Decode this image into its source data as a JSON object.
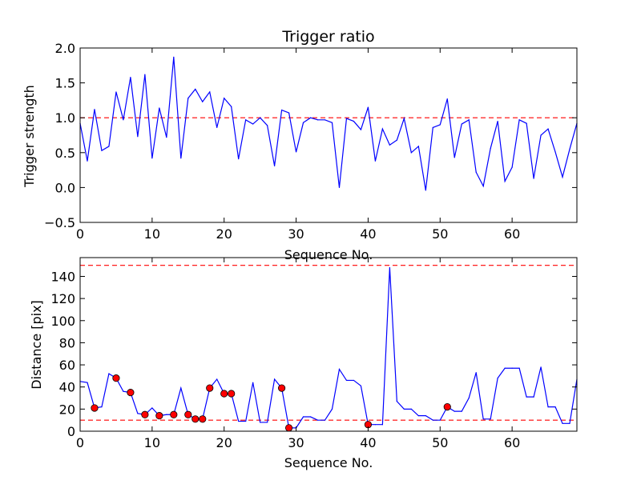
{
  "chart_data": [
    {
      "type": "line",
      "title": "Trigger ratio",
      "xlabel": "Sequence No.",
      "ylabel": "Trigger strength",
      "xlim": [
        0,
        69
      ],
      "ylim": [
        -0.5,
        2.0
      ],
      "xticks": [
        0,
        10,
        20,
        30,
        40,
        50,
        60
      ],
      "xtick_labels": [
        "0",
        "10",
        "20",
        "30",
        "40",
        "50",
        "60"
      ],
      "yticks": [
        -0.5,
        0.0,
        0.5,
        1.0,
        1.5,
        2.0
      ],
      "ytick_labels": [
        "−0.5",
        "0.0",
        "0.5",
        "1.0",
        "1.5",
        "2.0"
      ],
      "series": [
        {
          "color": "#0000ff",
          "x": [
            0,
            1,
            2,
            3,
            4,
            5,
            6,
            7,
            8,
            9,
            10,
            11,
            12,
            13,
            14,
            15,
            16,
            17,
            18,
            19,
            20,
            21,
            22,
            23,
            24,
            25,
            26,
            27,
            28,
            29,
            30,
            31,
            32,
            33,
            34,
            35,
            36,
            37,
            38,
            39,
            40,
            41,
            42,
            43,
            44,
            45,
            46,
            47,
            48,
            49,
            50,
            51,
            52,
            53,
            54,
            55,
            56,
            57,
            58,
            59,
            60,
            61,
            62,
            63,
            64,
            65,
            66,
            67,
            68,
            69
          ],
          "values": [
            0.92,
            0.38,
            1.12,
            0.53,
            0.59,
            1.37,
            0.97,
            1.58,
            0.73,
            1.62,
            0.42,
            1.14,
            0.72,
            1.87,
            0.42,
            1.28,
            1.41,
            1.23,
            1.37,
            0.86,
            1.28,
            1.16,
            0.41,
            0.97,
            0.91,
            1.0,
            0.89,
            0.31,
            1.11,
            1.07,
            0.51,
            0.93,
            1.0,
            0.97,
            0.97,
            0.93,
            0.0,
            0.99,
            0.95,
            0.83,
            1.15,
            0.38,
            0.84,
            0.61,
            0.68,
            0.99,
            0.5,
            0.59,
            -0.04,
            0.86,
            0.9,
            1.27,
            0.43,
            0.91,
            0.97,
            0.22,
            0.02,
            0.56,
            0.95,
            0.09,
            0.29,
            0.97,
            0.92,
            0.13,
            0.75,
            0.84,
            0.51,
            0.15,
            0.55,
            0.92
          ]
        }
      ],
      "reference_lines": [
        {
          "y": 1.0,
          "color": "#ff0000",
          "style": "dashed"
        }
      ],
      "grid": false
    },
    {
      "type": "line",
      "title": "",
      "xlabel": "Sequence No.",
      "ylabel": "Distance [pix]",
      "xlim": [
        0,
        69
      ],
      "ylim": [
        0,
        157
      ],
      "xticks": [
        0,
        10,
        20,
        30,
        40,
        50,
        60
      ],
      "xtick_labels": [
        "0",
        "10",
        "20",
        "30",
        "40",
        "50",
        "60"
      ],
      "yticks": [
        0,
        20,
        40,
        60,
        80,
        100,
        120,
        140
      ],
      "ytick_labels": [
        "0",
        "20",
        "40",
        "60",
        "80",
        "100",
        "120",
        "140"
      ],
      "series": [
        {
          "color": "#0000ff",
          "x": [
            0,
            1,
            2,
            3,
            4,
            5,
            6,
            7,
            8,
            9,
            10,
            11,
            12,
            13,
            14,
            15,
            16,
            17,
            18,
            19,
            20,
            21,
            22,
            23,
            24,
            25,
            26,
            27,
            28,
            29,
            30,
            31,
            32,
            33,
            34,
            35,
            36,
            37,
            38,
            39,
            40,
            41,
            42,
            43,
            44,
            45,
            46,
            47,
            48,
            49,
            50,
            51,
            52,
            53,
            54,
            55,
            56,
            57,
            58,
            59,
            60,
            61,
            62,
            63,
            64,
            65,
            66,
            67,
            68,
            69
          ],
          "values": [
            45,
            44,
            21,
            22,
            52,
            48,
            36,
            35,
            16,
            15,
            21,
            14,
            15,
            15,
            39,
            15,
            11,
            11,
            39,
            47,
            34,
            34,
            9,
            9,
            44,
            8,
            8,
            47,
            39,
            3,
            3,
            13,
            13,
            10,
            10,
            20,
            56,
            46,
            46,
            41,
            6,
            6,
            6,
            148,
            27,
            20,
            20,
            14,
            14,
            10,
            10,
            22,
            18,
            18,
            30,
            53,
            11,
            11,
            48,
            57,
            57,
            57,
            31,
            31,
            58,
            22,
            22,
            7,
            7,
            47
          ]
        }
      ],
      "markers": {
        "color": "#ff0000",
        "x": [
          2,
          5,
          7,
          9,
          11,
          13,
          15,
          16,
          17,
          18,
          20,
          21,
          28,
          29,
          40,
          51
        ],
        "values": [
          21,
          48,
          35,
          15,
          14,
          15,
          15,
          11,
          11,
          39,
          34,
          34,
          39,
          3,
          6,
          22
        ]
      },
      "reference_lines": [
        {
          "y": 150,
          "color": "#ff0000",
          "style": "dashed"
        },
        {
          "y": 10,
          "color": "#ff0000",
          "style": "dashed"
        }
      ],
      "grid": false
    }
  ]
}
